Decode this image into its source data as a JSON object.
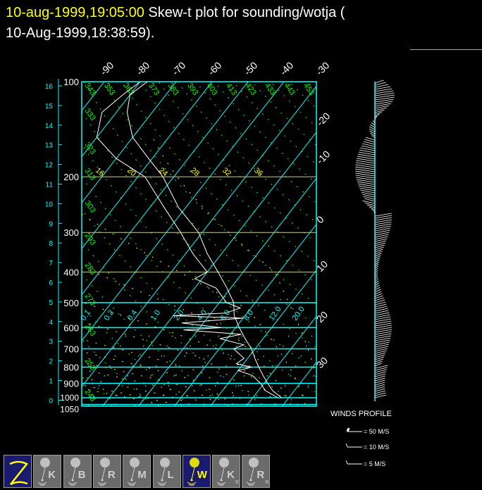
{
  "header": {
    "timestamp": "10-aug-1999,19:05:00",
    "title_line1": " Skew-t plot for sounding/wotja (",
    "title_line2": "10-Aug-1999,18:38:59)."
  },
  "colors": {
    "isotherm": "#00ffff",
    "dry_adiabat": "#00ff00",
    "moist_adiabat": "#ffff00",
    "sounding": "#ffffff",
    "timestamp": "#ffff00",
    "selected_button": "#1a1a6e"
  },
  "chart_data": {
    "type": "line",
    "subtype": "skew-t log-p",
    "pressure_ticks": [
      "100",
      "200",
      "300",
      "400",
      "500",
      "600",
      "700",
      "800",
      "900",
      "1000",
      "1050"
    ],
    "pressure_values": [
      100,
      200,
      300,
      400,
      500,
      600,
      700,
      800,
      900,
      1000,
      1050
    ],
    "height_ticks_km": [
      "16",
      "15",
      "14",
      "13",
      "12",
      "11",
      "10",
      "9",
      "8",
      "7",
      "6",
      "5",
      "4",
      "3",
      "2",
      "1",
      "0"
    ],
    "isotherm_top_labels": [
      "-90",
      "-80",
      "-70",
      "-60",
      "-50",
      "-40",
      "-30"
    ],
    "isotherm_right_labels": [
      "-20",
      "-10",
      "0",
      "10",
      "20",
      "30"
    ],
    "dry_adiabat_top_labels": [
      "343",
      "353",
      "363",
      "373",
      "383",
      "393",
      "403",
      "413",
      "423",
      "433",
      "443",
      "453"
    ],
    "dry_adiabat_left_labels": [
      "333",
      "323",
      "313",
      "303",
      "293",
      "283",
      "273",
      "263",
      "253",
      "243"
    ],
    "moist_adiabat_labels": [
      "16",
      "20",
      "24",
      "28",
      "32",
      "36"
    ],
    "mixing_ratio_labels": [
      "0.1",
      "0.2",
      "0.4",
      "1.0",
      "2.0",
      "4.0",
      "6.0",
      "8.0",
      "12.0",
      "20.0"
    ],
    "series": [
      {
        "points": [
          [
            1000,
            28
          ],
          [
            950,
            24
          ],
          [
            900,
            21
          ],
          [
            850,
            18
          ],
          [
            800,
            15
          ],
          [
            750,
            12
          ],
          [
            700,
            9
          ],
          [
            650,
            5
          ],
          [
            600,
            1
          ],
          [
            550,
            -3
          ],
          [
            500,
            -6
          ],
          [
            450,
            -11
          ],
          [
            400,
            -17
          ],
          [
            350,
            -24
          ],
          [
            300,
            -31
          ],
          [
            250,
            -42
          ],
          [
            200,
            -53
          ],
          [
            175,
            -61
          ],
          [
            150,
            -70
          ],
          [
            125,
            -77
          ],
          [
            110,
            -80
          ],
          [
            100,
            -78
          ]
        ]
      },
      {
        "points": [
          [
            1000,
            27
          ],
          [
            950,
            22
          ],
          [
            900,
            19
          ],
          [
            850,
            15
          ],
          [
            820,
            10
          ],
          [
            800,
            13
          ],
          [
            780,
            8
          ],
          [
            750,
            9
          ],
          [
            700,
            4
          ],
          [
            680,
            6
          ],
          [
            650,
            -2
          ],
          [
            630,
            3
          ],
          [
            610,
            -14
          ],
          [
            600,
            -4
          ],
          [
            580,
            -16
          ],
          [
            560,
            0
          ],
          [
            550,
            -20
          ],
          [
            540,
            -6
          ],
          [
            520,
            -3
          ],
          [
            500,
            -8
          ],
          [
            450,
            -14
          ],
          [
            420,
            -22
          ],
          [
            400,
            -20
          ],
          [
            350,
            -28
          ],
          [
            300,
            -36
          ],
          [
            250,
            -46
          ],
          [
            200,
            -58
          ],
          [
            175,
            -70
          ],
          [
            150,
            -80
          ],
          [
            125,
            -84
          ],
          [
            110,
            -82
          ],
          [
            100,
            -80
          ]
        ]
      }
    ]
  },
  "winds": {
    "title": "WINDS PROFILE",
    "legend": [
      "= 50 M/S",
      "= 10 M/S",
      "= 5 M/S"
    ]
  },
  "toolbar": {
    "buttons": [
      "Z",
      "K",
      "B",
      "R",
      "M",
      "L",
      "W",
      "K",
      "R"
    ],
    "subscripts": [
      "",
      "",
      "",
      "",
      "",
      "",
      "",
      "R",
      "R"
    ],
    "selected": [
      0,
      6
    ]
  }
}
